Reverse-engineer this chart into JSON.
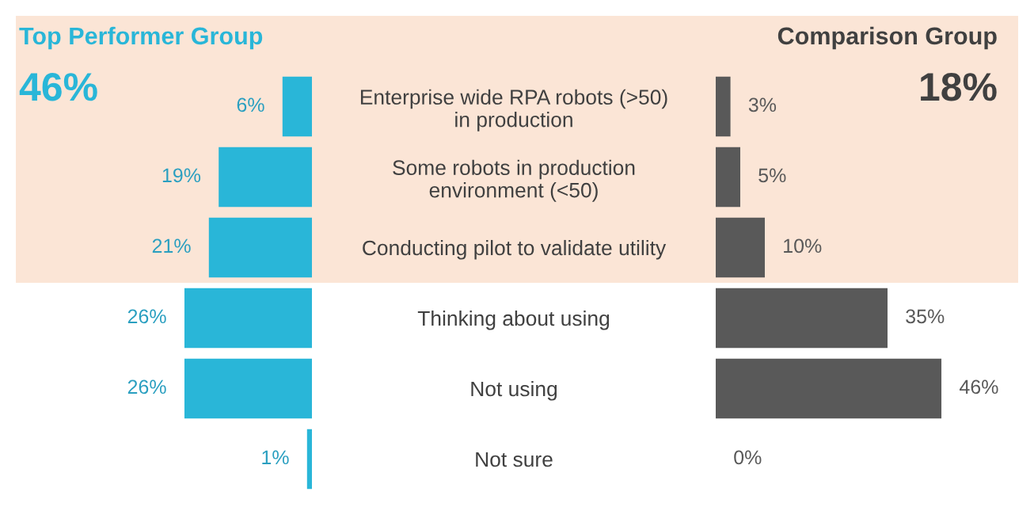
{
  "chart_data": [
    {
      "type": "bar",
      "orientation": "horizontal",
      "title": "Top Performer Group",
      "subtitle": "46%",
      "categories": [
        "Enterprise wide RPA robots (>50)\nin production",
        "Some robots in production\nenvironment (<50)",
        "Conducting pilot to validate utility",
        "Thinking about using",
        "Not using",
        "Not sure"
      ],
      "series": [
        {
          "color": "#29b6d8",
          "values": [
            6,
            19,
            21,
            26,
            26,
            1
          ],
          "value_labels": [
            "6%",
            "19%",
            "21%",
            "26%",
            "26%",
            "1%"
          ]
        }
      ],
      "tick_labels": false,
      "bands": [
        {
          "axis": "y",
          "from": "Enterprise wide RPA robots (>50)\nin production",
          "to": "Conducting pilot to validate utility",
          "color": "#fbe5d6"
        }
      ]
    },
    {
      "type": "bar",
      "orientation": "horizontal",
      "title": "Comparison Group",
      "subtitle": "18%",
      "categories": [
        "Enterprise wide RPA robots (>50)\nin production",
        "Some robots in production\nenvironment (<50)",
        "Conducting pilot to validate utility",
        "Thinking about using",
        "Not using",
        "Not sure"
      ],
      "series": [
        {
          "color": "#595959",
          "values": [
            3,
            5,
            10,
            35,
            46,
            0
          ],
          "value_labels": [
            "3%",
            "5%",
            "10%",
            "35%",
            "46%",
            "0%"
          ]
        }
      ],
      "tick_labels": "y",
      "bands": [
        {
          "axis": "y",
          "from": "Enterprise wide RPA robots (>50)\nin production",
          "to": "Conducting pilot to validate utility",
          "color": "#fbe5d6"
        }
      ]
    }
  ]
}
